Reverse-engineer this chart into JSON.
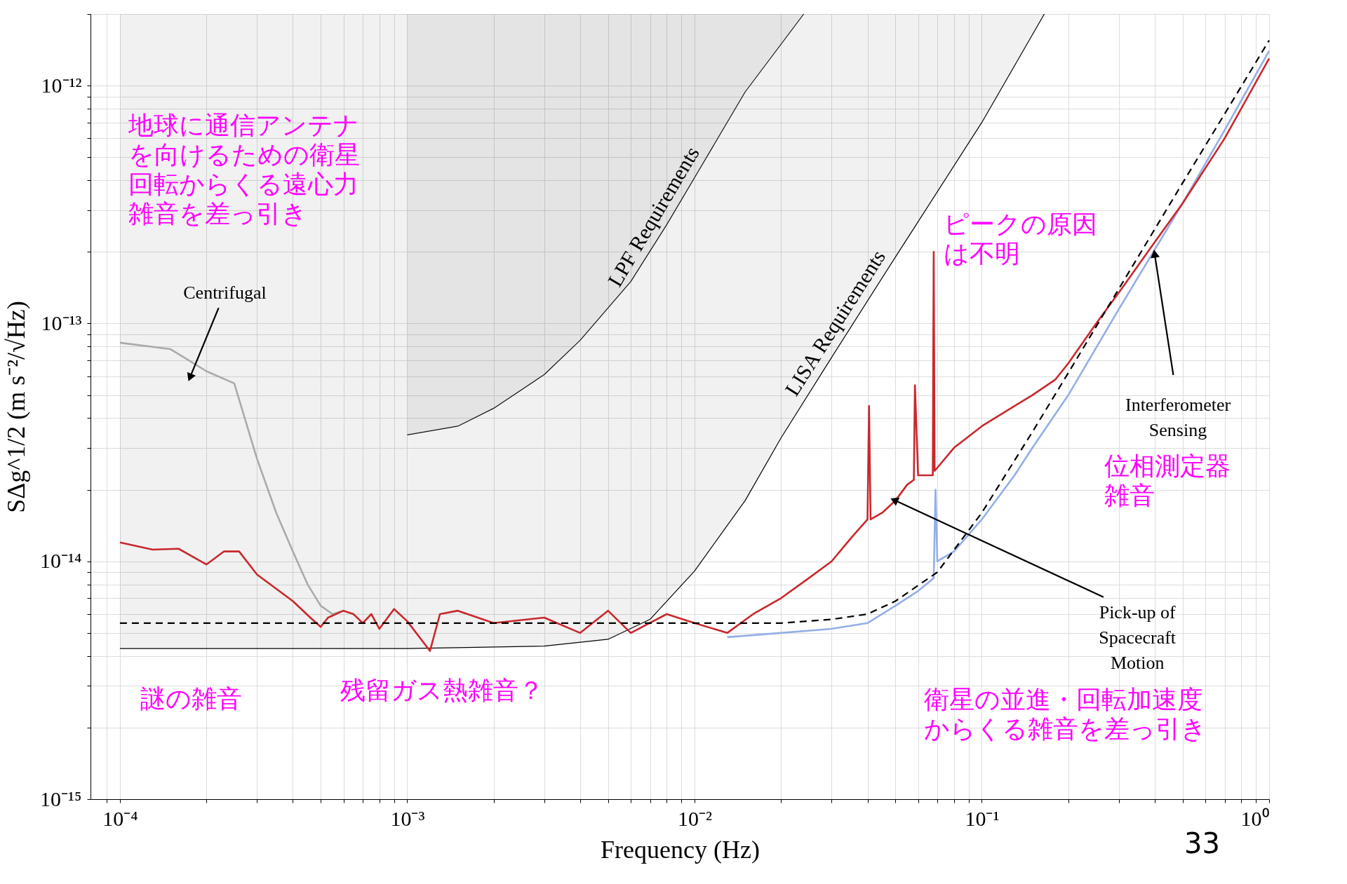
{
  "chart_data": {
    "type": "line",
    "xlabel": "Frequency (Hz)",
    "ylabel": "SΔg^1/2 (m s⁻²/√Hz)",
    "log": "xy",
    "grid": true,
    "xlim": [
      7.9e-05,
      1
    ],
    "ylim": [
      1e-15,
      2e-12
    ],
    "xticks": [
      {
        "value": 9e-05,
        "label": null
      },
      {
        "value": 0.0001,
        "label": "10⁻⁴"
      },
      {
        "value": 0.0002,
        "label": null
      },
      {
        "value": 0.0003,
        "label": null
      },
      {
        "value": 0.0004,
        "label": null
      },
      {
        "value": 0.0005,
        "label": null
      },
      {
        "value": 0.0006,
        "label": null
      },
      {
        "value": 0.0007,
        "label": null
      },
      {
        "value": 0.0008,
        "label": null
      },
      {
        "value": 0.0009,
        "label": null
      },
      {
        "value": 0.001,
        "label": "10⁻³"
      },
      {
        "value": 0.002,
        "label": null
      },
      {
        "value": 0.003,
        "label": null
      },
      {
        "value": 0.004,
        "label": null
      },
      {
        "value": 0.005,
        "label": null
      },
      {
        "value": 0.006,
        "label": null
      },
      {
        "value": 0.007,
        "label": null
      },
      {
        "value": 0.008,
        "label": null
      },
      {
        "value": 0.009,
        "label": null
      },
      {
        "value": 0.01,
        "label": "10⁻²"
      },
      {
        "value": 0.02,
        "label": null
      },
      {
        "value": 0.03,
        "label": null
      },
      {
        "value": 0.04,
        "label": null
      },
      {
        "value": 0.05,
        "label": null
      },
      {
        "value": 0.06,
        "label": null
      },
      {
        "value": 0.07,
        "label": null
      },
      {
        "value": 0.08,
        "label": null
      },
      {
        "value": 0.09,
        "label": null
      },
      {
        "value": 0.1,
        "label": "10⁻¹"
      },
      {
        "value": 0.2,
        "label": null
      },
      {
        "value": 0.3,
        "label": null
      },
      {
        "value": 0.4,
        "label": null
      },
      {
        "value": 0.5,
        "label": null
      },
      {
        "value": 0.6,
        "label": null
      },
      {
        "value": 0.7,
        "label": null
      },
      {
        "value": 0.8,
        "label": null
      },
      {
        "value": 0.9,
        "label": null
      },
      {
        "value": 1,
        "label": "10⁰"
      }
    ],
    "yticks": [
      {
        "value": 1e-15,
        "label": "10⁻¹⁵"
      },
      {
        "value": 2e-15,
        "label": null
      },
      {
        "value": 3e-15,
        "label": null
      },
      {
        "value": 4e-15,
        "label": null
      },
      {
        "value": 5e-15,
        "label": null
      },
      {
        "value": 6e-15,
        "label": null
      },
      {
        "value": 7e-15,
        "label": null
      },
      {
        "value": 8e-15,
        "label": null
      },
      {
        "value": 9e-15,
        "label": null
      },
      {
        "value": 1e-14,
        "label": "10⁻¹⁴"
      },
      {
        "value": 2e-14,
        "label": null
      },
      {
        "value": 3e-14,
        "label": null
      },
      {
        "value": 4e-14,
        "label": null
      },
      {
        "value": 5e-14,
        "label": null
      },
      {
        "value": 6e-14,
        "label": null
      },
      {
        "value": 7e-14,
        "label": null
      },
      {
        "value": 8e-14,
        "label": null
      },
      {
        "value": 9e-14,
        "label": null
      },
      {
        "value": 1e-13,
        "label": "10⁻¹³"
      },
      {
        "value": 2e-13,
        "label": null
      },
      {
        "value": 3e-13,
        "label": null
      },
      {
        "value": 4e-13,
        "label": null
      },
      {
        "value": 5e-13,
        "label": null
      },
      {
        "value": 6e-13,
        "label": null
      },
      {
        "value": 7e-13,
        "label": null
      },
      {
        "value": 8e-13,
        "label": null
      },
      {
        "value": 9e-13,
        "label": null
      },
      {
        "value": 1e-12,
        "label": "10⁻¹²"
      },
      {
        "value": 2e-12,
        "label": null
      }
    ],
    "series": [
      {
        "name": "LISA Requirements",
        "type": "line",
        "color": "#000000",
        "x": [
          0.0001,
          0.001,
          0.003,
          0.005,
          0.007,
          0.01,
          0.015,
          0.02,
          0.03,
          0.05,
          0.1,
          0.165
        ],
        "values": [
          4.3e-15,
          4.3e-15,
          4.4e-15,
          4.7e-15,
          5.7e-15,
          9.1e-15,
          1.8e-14,
          3.3e-14,
          7.2e-14,
          1.9e-13,
          7e-13,
          2e-12
        ],
        "lower": [
          4.3e-15,
          4.3e-15,
          4.4e-15,
          4.7e-15,
          5.7e-15,
          9.1e-15,
          1.8e-14,
          3.3e-14,
          7.2e-14,
          1.9e-13,
          7e-13,
          2e-12
        ],
        "upper": [
          2e-12,
          2e-12,
          2e-12,
          2e-12,
          2e-12,
          2e-12,
          2e-12,
          2e-12,
          2e-12,
          2e-12,
          2e-12,
          2e-12
        ]
      },
      {
        "name": "LPF Requirements",
        "type": "line",
        "color": "#111111",
        "x": [
          0.001,
          0.0015,
          0.002,
          0.003,
          0.004,
          0.006,
          0.008,
          0.01,
          0.015,
          0.024
        ],
        "values": [
          3.4e-14,
          3.7e-14,
          4.4e-14,
          6.1e-14,
          8.5e-14,
          1.5e-13,
          2.6e-13,
          4.1e-13,
          9.4e-13,
          2e-12
        ],
        "lower": [
          3.4e-14,
          3.7e-14,
          4.4e-14,
          6.1e-14,
          8.5e-14,
          1.5e-13,
          2.6e-13,
          4.1e-13,
          9.4e-13,
          2e-12
        ],
        "upper": [
          2e-12,
          2e-12,
          2e-12,
          2e-12,
          2e-12,
          2e-12,
          2e-12,
          2e-12,
          2e-12,
          2e-12
        ]
      },
      {
        "type": "line",
        "color": "#aaaaaa",
        "x": [
          0.0001,
          0.00015,
          0.0002,
          0.00025,
          0.0003,
          0.00035,
          0.0004,
          0.00045,
          0.0005,
          0.00055,
          0.0006
        ],
        "values": [
          8.3e-14,
          7.8e-14,
          6.3e-14,
          5.6e-14,
          2.7e-14,
          1.6e-14,
          1.1e-14,
          8e-15,
          6.5e-15,
          6e-15,
          6.2e-15
        ]
      },
      {
        "type": "line",
        "color": "#94aee6",
        "x": [
          0.013,
          0.02,
          0.03,
          0.04,
          0.05,
          0.06,
          0.068,
          0.069,
          0.07,
          0.08,
          0.1,
          0.13,
          0.15,
          0.2,
          0.3,
          0.5,
          0.7,
          1
        ],
        "values": [
          4.8e-15,
          5e-15,
          5.2e-15,
          5.5e-15,
          6.5e-15,
          7.5e-15,
          8.5e-15,
          2e-14,
          1e-14,
          1.1e-14,
          1.5e-14,
          2.3e-14,
          3e-14,
          5e-14,
          1.15e-13,
          3.2e-13,
          6.5e-13,
          1.4e-12
        ]
      },
      {
        "type": "line",
        "color": "#c8282d",
        "x": [
          0.0001,
          0.00013,
          0.00016,
          0.0002,
          0.00023,
          0.00026,
          0.0003,
          0.0004,
          0.00046,
          0.0005,
          0.00053,
          0.0006,
          0.00065,
          0.0007,
          0.00075,
          0.0008,
          0.0009,
          0.001,
          0.0012,
          0.0013,
          0.0015,
          0.002,
          0.003,
          0.004,
          0.005,
          0.006,
          0.008,
          0.01,
          0.013,
          0.016,
          0.02,
          0.025,
          0.03,
          0.035,
          0.04,
          0.0405,
          0.041,
          0.045,
          0.05,
          0.055,
          0.058,
          0.0585,
          0.06,
          0.0675,
          0.068,
          0.0685,
          0.08,
          0.1,
          0.13,
          0.15,
          0.18,
          0.2,
          0.25,
          0.3,
          0.4,
          0.5,
          0.7,
          1
        ],
        "values": [
          1.2e-14,
          1.12e-14,
          1.13e-14,
          9.7e-15,
          1.1e-14,
          1.1e-14,
          8.8e-15,
          6.8e-15,
          5.8e-15,
          5.3e-15,
          5.8e-15,
          6.2e-15,
          6e-15,
          5.5e-15,
          6e-15,
          5.2e-15,
          6.3e-15,
          5.6e-15,
          4.2e-15,
          6e-15,
          6.2e-15,
          5.5e-15,
          5.8e-15,
          5e-15,
          6.2e-15,
          5e-15,
          6e-15,
          5.5e-15,
          5e-15,
          6e-15,
          7e-15,
          8.5e-15,
          1e-14,
          1.25e-14,
          1.5e-14,
          4.5e-14,
          1.5e-14,
          1.6e-14,
          1.8e-14,
          2.1e-14,
          2.2e-14,
          5.5e-14,
          2.3e-14,
          2.3e-14,
          2e-13,
          2.4e-14,
          3e-14,
          3.7e-14,
          4.5e-14,
          5e-14,
          5.8e-14,
          6.8e-14,
          1e-13,
          1.35e-13,
          2.2e-13,
          3.2e-13,
          6e-13,
          1.3e-12
        ]
      },
      {
        "type": "line",
        "color": "#000000",
        "line_style": "dashed",
        "x": [
          0.0001,
          0.001,
          0.01,
          0.02,
          0.03,
          0.04,
          0.05,
          0.07,
          0.1,
          0.15,
          0.2,
          0.3,
          0.5,
          0.7,
          1
        ],
        "values": [
          5.5e-15,
          5.5e-15,
          5.5e-15,
          5.5e-15,
          5.7e-15,
          6e-15,
          6.8e-15,
          9e-15,
          1.6e-14,
          3.5e-14,
          6.2e-14,
          1.4e-13,
          3.9e-13,
          7.6e-13,
          1.55e-12
        ]
      }
    ],
    "annotations": [
      "地球に通信アンテナを向けるための衛星回転からくる遠心力雑音を差っ引き",
      {
        "text": "Centrifugal",
        "x": 0.000176,
        "y": 6e-14
      },
      "ピークの原因は不明",
      {
        "text": "Interferometer\nSensing",
        "x": 0.4,
        "y": 1.94e-13
      },
      "位相測定器雑音",
      {
        "text": "Pick-up of\nSpacecraft\nMotion",
        "x": 0.05,
        "y": 1.8e-14
      },
      "謎の雑音",
      "残留ガス熱雑音？",
      "衛星の並進・回転加速度からくる雑音を差っ引き",
      "33"
    ]
  }
}
